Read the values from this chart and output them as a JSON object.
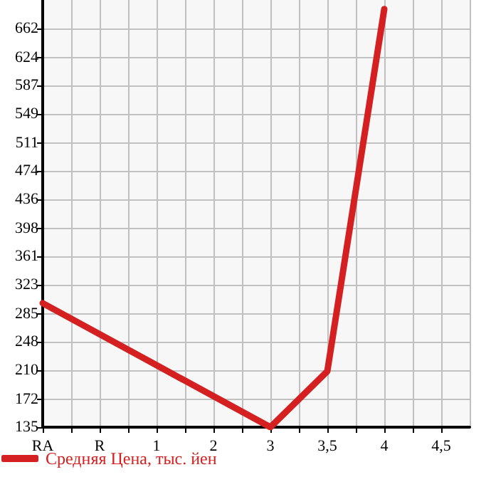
{
  "chart_data": {
    "type": "line",
    "categories": [
      "RA",
      "R",
      "1",
      "2",
      "3",
      "3,5",
      "4",
      "4,5"
    ],
    "series": [
      {
        "name": "Средняя Цена, тыс. йен",
        "color": "#d42020",
        "values": [
          299,
          null,
          null,
          null,
          135,
          209,
          688,
          null
        ]
      }
    ],
    "ylim": [
      135,
      700
    ],
    "yticks": [
      135,
      172,
      210,
      248,
      285,
      323,
      361,
      398,
      436,
      474,
      511,
      549,
      587,
      624,
      662
    ],
    "grid": true,
    "legend": "bottom left",
    "marker": "none",
    "line_style": "solid"
  }
}
